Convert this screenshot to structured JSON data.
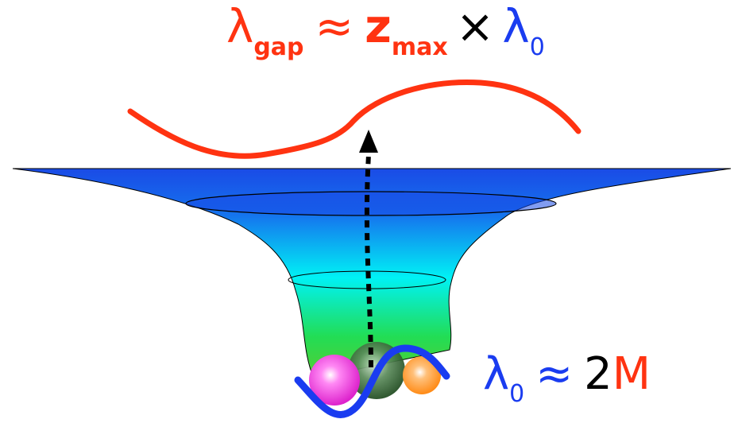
{
  "equation_top": {
    "lambda": "λ",
    "lambda_sub": "gap",
    "approx": "≈",
    "z": "z",
    "z_sub": "max",
    "times": "×",
    "lambda0": "λ",
    "lambda0_sub": "0"
  },
  "equation_bottom": {
    "lambda": "λ",
    "lambda_sub": "0",
    "approx": "≈",
    "two": "2",
    "M": "M"
  },
  "colors": {
    "red": "#ff3311",
    "blue": "#1a3cf0",
    "black": "#000000",
    "funnel_top": "#1a4be6",
    "funnel_mid": "#00f0f0",
    "funnel_bottom": "#22dd44",
    "ball_pink": "#ee33dd",
    "ball_green": "#336633",
    "ball_orange": "#ff8822"
  }
}
